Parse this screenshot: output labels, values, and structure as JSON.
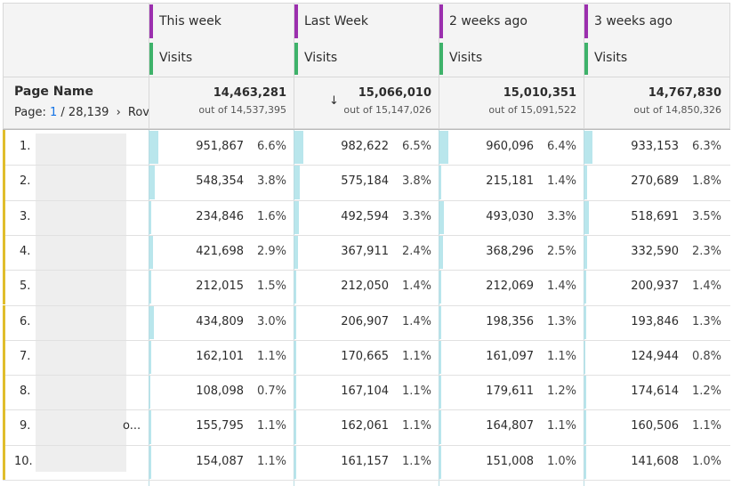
{
  "table": {
    "header": {
      "dimension": "Page Name",
      "page_label": "Page:",
      "page": "1",
      "page_total": "/ 28,139",
      "rows_label": "Rov"
    },
    "columns": [
      {
        "title": "This week",
        "metric": "Visits"
      },
      {
        "title": "Last Week",
        "metric": "Visits"
      },
      {
        "title": "2 weeks ago",
        "metric": "Visits"
      },
      {
        "title": "3 weeks ago",
        "metric": "Visits"
      }
    ],
    "totals": [
      {
        "value": "14,463,281",
        "out_of": "out of 14,537,395"
      },
      {
        "value": "15,066,010",
        "out_of": "out of 15,147,026"
      },
      {
        "value": "15,010,351",
        "out_of": "out of 15,091,522"
      },
      {
        "value": "14,767,830",
        "out_of": "out of 14,850,326"
      }
    ],
    "rows": [
      {
        "label": "1.",
        "cells": [
          {
            "value": "951,867",
            "pct": "6.6%"
          },
          {
            "value": "982,622",
            "pct": "6.5%"
          },
          {
            "value": "960,096",
            "pct": "6.4%"
          },
          {
            "value": "933,153",
            "pct": "6.3%"
          }
        ]
      },
      {
        "label": "2.",
        "cells": [
          {
            "value": "548,354",
            "pct": "3.8%"
          },
          {
            "value": "575,184",
            "pct": "3.8%"
          },
          {
            "value": "215,181",
            "pct": "1.4%"
          },
          {
            "value": "270,689",
            "pct": "1.8%"
          }
        ]
      },
      {
        "label": "3.",
        "cells": [
          {
            "value": "234,846",
            "pct": "1.6%"
          },
          {
            "value": "492,594",
            "pct": "3.3%"
          },
          {
            "value": "493,030",
            "pct": "3.3%"
          },
          {
            "value": "518,691",
            "pct": "3.5%"
          }
        ]
      },
      {
        "label": "4.",
        "cells": [
          {
            "value": "421,698",
            "pct": "2.9%"
          },
          {
            "value": "367,911",
            "pct": "2.4%"
          },
          {
            "value": "368,296",
            "pct": "2.5%"
          },
          {
            "value": "332,590",
            "pct": "2.3%"
          }
        ]
      },
      {
        "label": "5.",
        "cells": [
          {
            "value": "212,015",
            "pct": "1.5%"
          },
          {
            "value": "212,050",
            "pct": "1.4%"
          },
          {
            "value": "212,069",
            "pct": "1.4%"
          },
          {
            "value": "200,937",
            "pct": "1.4%"
          }
        ]
      },
      {
        "label": "6.",
        "cells": [
          {
            "value": "434,809",
            "pct": "3.0%"
          },
          {
            "value": "206,907",
            "pct": "1.4%"
          },
          {
            "value": "198,356",
            "pct": "1.3%"
          },
          {
            "value": "193,846",
            "pct": "1.3%"
          }
        ]
      },
      {
        "label": "7.",
        "cells": [
          {
            "value": "162,101",
            "pct": "1.1%"
          },
          {
            "value": "170,665",
            "pct": "1.1%"
          },
          {
            "value": "161,097",
            "pct": "1.1%"
          },
          {
            "value": "124,944",
            "pct": "0.8%"
          }
        ]
      },
      {
        "label": "8.",
        "cells": [
          {
            "value": "108,098",
            "pct": "0.7%"
          },
          {
            "value": "167,104",
            "pct": "1.1%"
          },
          {
            "value": "179,611",
            "pct": "1.2%"
          },
          {
            "value": "174,614",
            "pct": "1.2%"
          }
        ]
      },
      {
        "label": "9.",
        "tail": "o...",
        "cells": [
          {
            "value": "155,795",
            "pct": "1.1%"
          },
          {
            "value": "162,061",
            "pct": "1.1%"
          },
          {
            "value": "164,807",
            "pct": "1.1%"
          },
          {
            "value": "160,506",
            "pct": "1.1%"
          }
        ]
      },
      {
        "label": "10.",
        "cells": [
          {
            "value": "154,087",
            "pct": "1.1%"
          },
          {
            "value": "161,157",
            "pct": "1.1%"
          },
          {
            "value": "151,008",
            "pct": "1.0%"
          },
          {
            "value": "141,608",
            "pct": "1.0%"
          }
        ]
      }
    ]
  }
}
